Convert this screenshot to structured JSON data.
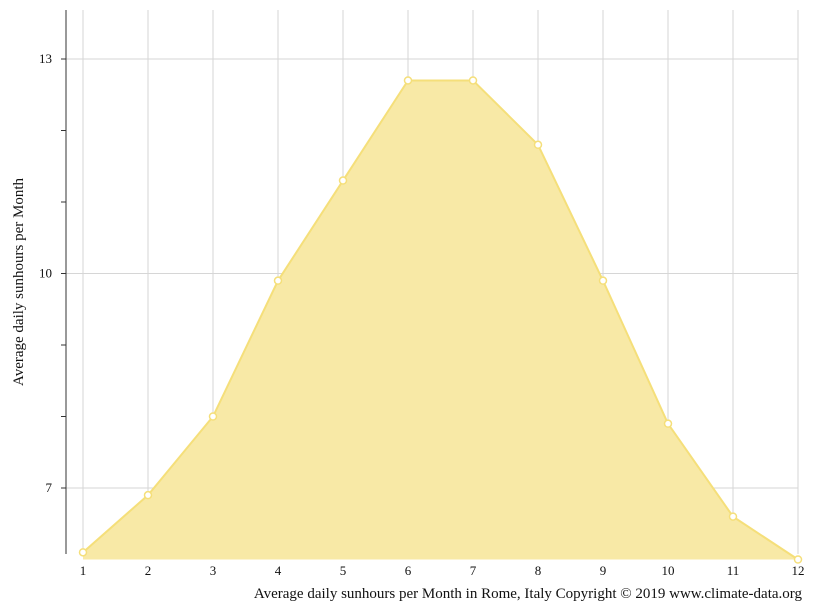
{
  "chart_data": {
    "type": "area",
    "x": [
      1,
      2,
      3,
      4,
      5,
      6,
      7,
      8,
      9,
      10,
      11,
      12
    ],
    "series": [
      {
        "values": [
          6.1,
          6.9,
          8.0,
          9.9,
          11.3,
          12.7,
          12.7,
          11.8,
          9.9,
          7.9,
          6.6,
          6.0
        ],
        "color": "#f5dc6b"
      }
    ],
    "ylabel": "Average daily sunhours per Month",
    "xlabel": "Average daily sunhours per Month in Rome, Italy Copyright © 2019 www.climate-data.org",
    "xlim": [
      1,
      12
    ],
    "ylim": [
      6.0,
      13.7
    ],
    "xticks": [
      "1",
      "2",
      "3",
      "4",
      "5",
      "6",
      "7",
      "8",
      "9",
      "10",
      "11",
      "12"
    ],
    "yticks_labeled": [
      "7",
      "10",
      "13"
    ],
    "yticks_minor": [
      8,
      9,
      11,
      12
    ],
    "grid": true,
    "fill_color": "#f8e9a6",
    "line_color": "#f5df7a",
    "marker_fill": "#ffffff"
  }
}
